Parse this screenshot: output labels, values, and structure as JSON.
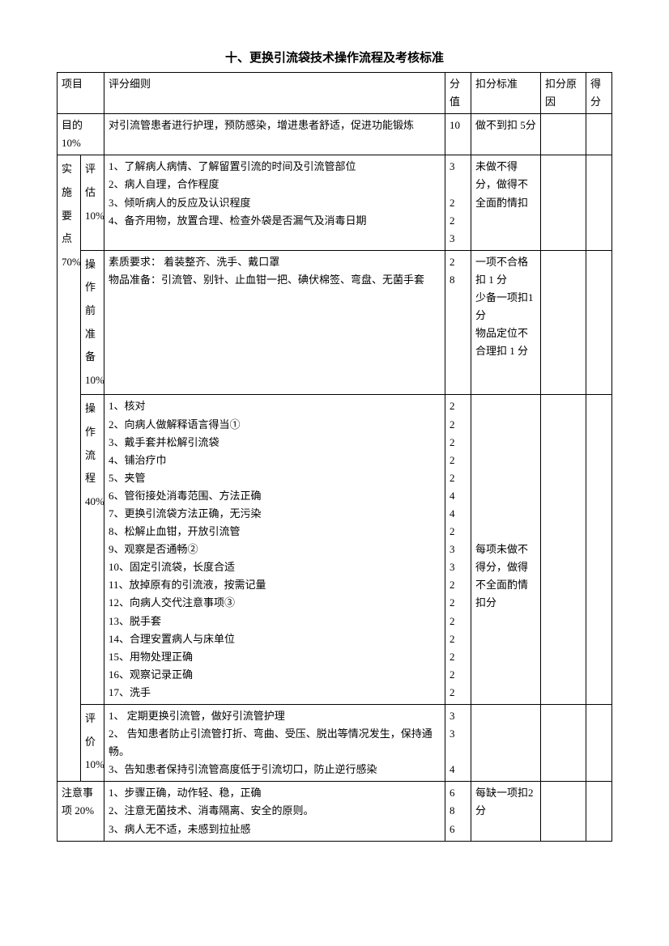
{
  "title": "十、更换引流袋技术操作流程及考核标准",
  "headers": {
    "project": "项目",
    "detail": "评分细则",
    "score": "分值",
    "standard": "扣分标准",
    "reason": "扣分原因",
    "result": "得分"
  },
  "rows": {
    "purpose": {
      "label": "目的 10%",
      "detail": "对引流管患者进行护理，预防感染，增进患者舒适，促进功能锻炼",
      "score": "10",
      "standard": "做不到扣 5分"
    },
    "keypoints_label": "实施要点70%",
    "assess": {
      "label": "评估10%",
      "detail": "1、了解病人病情、了解留置引流的时间及引流管部位\n2、病人自理，合作程度\n3、倾听病人的反应及认识程度\n4、备齐用物，放置合理、检查外袋是否漏气及消毒日期",
      "score": "3\n\n2\n2\n3",
      "standard": "未做不得分，做得不全面酌情扣"
    },
    "prepare": {
      "label": "操作前准备10%",
      "detail": "素质要求：   着装整齐、洗手、戴口罩\n物品准备：引流管、别针、止血钳一把、碘伏棉签、弯盘、无菌手套",
      "score": "2\n8",
      "standard": "一项不合格扣 1 分\n少备一项扣1 分\n物品定位不合理扣 1 分"
    },
    "process": {
      "label": "操作流程40%",
      "detail": "1、核对\n2、向病人做解释语言得当①\n3、戴手套并松解引流袋\n4、铺治疗巾\n5、夹管\n6、管衔接处消毒范围、方法正确\n7、更换引流袋方法正确，无污染\n8、松解止血钳，开放引流管\n9、观察是否通畅②\n10、固定引流袋，长度合适\n11、放掉原有的引流液，按需记量\n12、向病人交代注意事项③\n13、脱手套\n14、合理安置病人与床单位\n15、用物处理正确\n16、观察记录正确\n17、洗手",
      "score": "2\n2\n2\n2\n2\n4\n4\n2\n3\n3\n2\n2\n2\n2\n2\n2\n2",
      "standard": "\n\n\n\n\n\n\n\n每项未做不得分，做得不全面酌情扣分"
    },
    "eval": {
      "label": "评价10%",
      "detail": "1、 定期更换引流管，做好引流管护理\n2、 告知患者防止引流管打折、弯曲、受压、脱出等情况发生，保持通畅。\n3、告知患者保持引流管高度低于引流切口，防止逆行感染",
      "score": "3\n3\n\n4"
    },
    "notes": {
      "label": "注意事项 20%",
      "detail": "1、步骤正确，动作轻、稳，正确\n2、注意无菌技术、消毒隔离、安全的原则。\n3、病人无不适，未感到拉扯感",
      "score": "6\n8\n6",
      "standard": "每缺一项扣2 分"
    }
  }
}
